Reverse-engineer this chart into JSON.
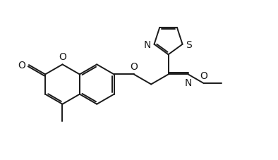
{
  "bg_color": "#ffffff",
  "line_color": "#1a1a1a",
  "lw": 1.4,
  "fs": 8.5,
  "figsize": [
    3.94,
    2.28
  ],
  "dpi": 100,
  "xlim": [
    -0.5,
    10.5
  ],
  "ylim": [
    -0.3,
    6.3
  ]
}
